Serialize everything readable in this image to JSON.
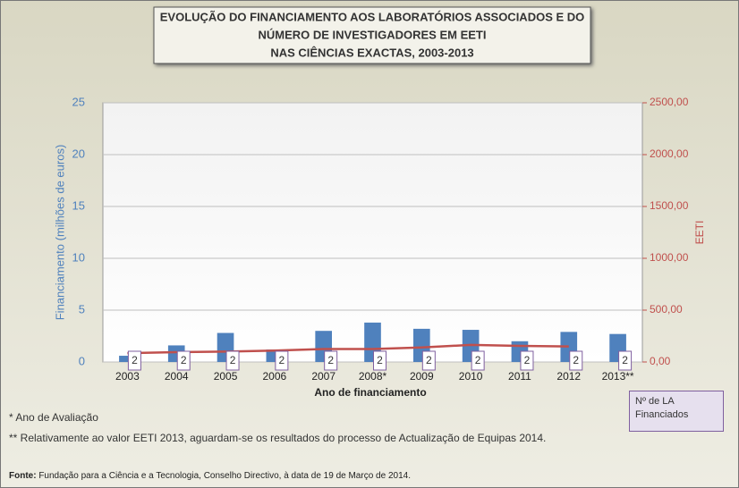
{
  "chart_data": {
    "type": "bar",
    "title": [
      "EVOLUÇÃO DO FINANCIAMENTO AOS LABORATÓRIOS ASSOCIADOS E DO",
      "NÚMERO DE INVESTIGADORES EM EETI",
      "NAS CIÊNCIAS EXACTAS, 2003-2013"
    ],
    "x_label": "Ano de financiamento",
    "y_label": "Financiamento (milhões de euros)",
    "y2_label": "EETI",
    "categories": [
      "2003",
      "2004",
      "2005",
      "2006",
      "2007",
      "2008*",
      "2009",
      "2010",
      "2011",
      "2012",
      "2013**"
    ],
    "series": [
      {
        "type": "bar",
        "color": "#4f81bd",
        "values": [
          0.6,
          1.6,
          2.8,
          1.2,
          3.0,
          3.8,
          3.2,
          3.1,
          2.0,
          2.9,
          2.7
        ]
      },
      {
        "type": "line",
        "axis": "y2",
        "color": "#c0504d",
        "values": [
          85,
          95,
          100,
          110,
          125,
          125,
          140,
          165,
          155,
          150,
          null
        ]
      },
      {
        "type": "label",
        "name": "Nº de LA Financiados",
        "color": "#7f5f9f",
        "values": [
          2,
          2,
          2,
          2,
          2,
          2,
          2,
          2,
          2,
          2,
          2
        ]
      }
    ],
    "ylim": [
      0,
      25
    ],
    "yticks": [
      0,
      5,
      10,
      15,
      20,
      25
    ],
    "y2lim": [
      0,
      2500
    ],
    "y2ticks": [
      {
        "value": 0,
        "label": "0,00"
      },
      {
        "value": 500,
        "label": "500,00"
      },
      {
        "value": 1000,
        "label": "1000,00"
      },
      {
        "value": 1500,
        "label": "1500,00"
      },
      {
        "value": 2000,
        "label": "2000,00"
      },
      {
        "value": 2500,
        "label": "2500,00"
      }
    ],
    "grid": true,
    "notes": [
      "* Ano de Avaliação",
      "** Relativamente ao valor EETI 2013, aguardam-se os resultados do processo de Actualização de Equipas 2014."
    ],
    "source_label": "Fonte:",
    "source": "Fundação para a Ciência e a Tecnologia, Conselho Directivo, à data de 19 de Março de 2014."
  }
}
